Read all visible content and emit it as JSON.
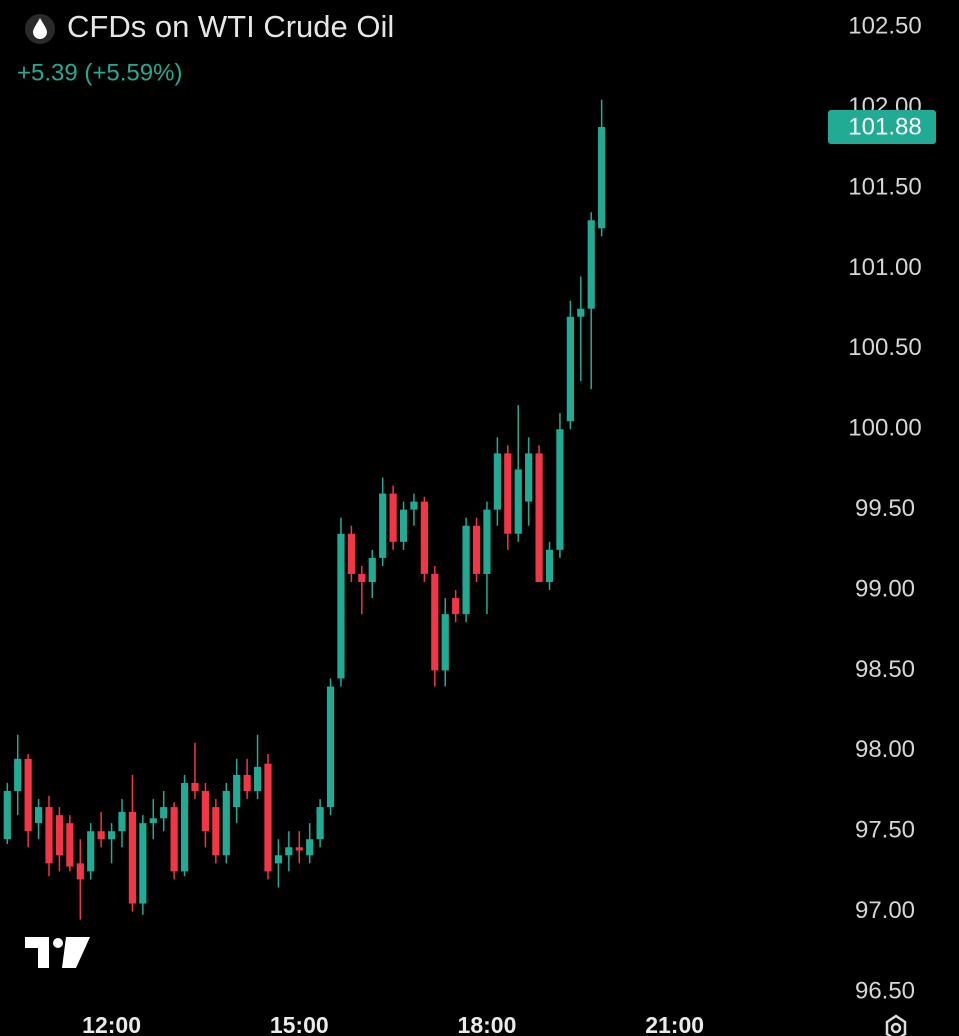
{
  "chart_data": {
    "type": "candlestick",
    "title": "CFDs on WTI Crude Oil",
    "change": "+5.39 (+5.59%)",
    "up_color": "#22ab94",
    "down_color": "#f23645",
    "x": [
      "10:20",
      "10:30",
      "10:40",
      "10:50",
      "11:00",
      "11:10",
      "11:20",
      "11:30",
      "11:40",
      "11:50",
      "12:00",
      "12:10",
      "12:20",
      "12:30",
      "12:40",
      "12:50",
      "13:00",
      "13:10",
      "13:20",
      "13:30",
      "13:40",
      "13:50",
      "14:00",
      "14:10",
      "14:20",
      "14:30",
      "14:40",
      "14:50",
      "15:00",
      "15:10",
      "15:20",
      "15:30",
      "15:40",
      "15:50",
      "16:00",
      "16:10",
      "16:20",
      "16:30",
      "16:40",
      "16:50",
      "17:00",
      "17:10",
      "17:20",
      "17:30",
      "17:40",
      "17:50",
      "18:00",
      "18:10",
      "18:20",
      "18:30",
      "18:40",
      "18:50",
      "19:00",
      "19:10",
      "19:20",
      "19:30",
      "19:40",
      "19:50"
    ],
    "open": [
      97.45,
      97.75,
      97.95,
      97.55,
      97.65,
      97.6,
      97.55,
      97.3,
      97.25,
      97.5,
      97.45,
      97.5,
      97.62,
      97.05,
      97.55,
      97.58,
      97.65,
      97.25,
      97.8,
      97.75,
      97.65,
      97.35,
      97.65,
      97.85,
      97.75,
      97.92,
      97.3,
      97.35,
      97.4,
      97.35,
      97.45,
      97.65,
      98.45,
      99.35,
      99.1,
      99.05,
      99.2,
      99.6,
      99.3,
      99.5,
      99.55,
      99.1,
      98.5,
      98.95,
      98.85,
      99.4,
      99.1,
      99.5,
      99.85,
      99.35,
      99.55,
      99.85,
      99.05,
      99.25,
      100.05,
      100.7,
      100.75,
      101.25
    ],
    "high": [
      97.8,
      98.1,
      97.98,
      97.7,
      97.72,
      97.65,
      97.6,
      97.45,
      97.55,
      97.62,
      97.55,
      97.7,
      97.85,
      97.6,
      97.7,
      97.75,
      97.68,
      97.85,
      98.05,
      97.8,
      97.7,
      97.8,
      97.95,
      97.95,
      98.1,
      97.98,
      97.45,
      97.5,
      97.5,
      97.55,
      97.7,
      98.45,
      99.45,
      99.4,
      99.15,
      99.25,
      99.7,
      99.65,
      99.55,
      99.6,
      99.58,
      99.15,
      98.95,
      99.0,
      99.45,
      99.45,
      99.55,
      99.95,
      99.9,
      100.15,
      99.95,
      99.9,
      99.3,
      100.1,
      100.8,
      100.95,
      101.35,
      102.05
    ],
    "low": [
      97.42,
      97.6,
      97.4,
      97.45,
      97.22,
      97.25,
      97.25,
      96.95,
      97.2,
      97.4,
      97.3,
      97.4,
      97.0,
      96.98,
      97.45,
      97.5,
      97.2,
      97.22,
      97.7,
      97.4,
      97.3,
      97.3,
      97.55,
      97.7,
      97.7,
      97.2,
      97.15,
      97.25,
      97.3,
      97.3,
      97.4,
      97.6,
      98.4,
      99.05,
      98.85,
      98.95,
      99.15,
      99.25,
      99.25,
      99.4,
      99.05,
      98.4,
      98.4,
      98.8,
      98.8,
      99.05,
      98.85,
      99.4,
      99.25,
      99.3,
      99.4,
      99.05,
      99.0,
      99.2,
      100.0,
      100.3,
      100.25,
      101.2
    ],
    "close": [
      97.75,
      97.95,
      97.5,
      97.65,
      97.3,
      97.35,
      97.28,
      97.2,
      97.5,
      97.45,
      97.5,
      97.62,
      97.05,
      97.55,
      97.58,
      97.65,
      97.25,
      97.8,
      97.75,
      97.5,
      97.35,
      97.75,
      97.85,
      97.75,
      97.9,
      97.25,
      97.35,
      97.4,
      97.38,
      97.45,
      97.65,
      98.4,
      99.35,
      99.1,
      99.05,
      99.2,
      99.6,
      99.3,
      99.5,
      99.55,
      99.1,
      98.5,
      98.85,
      98.85,
      99.4,
      99.1,
      99.5,
      99.85,
      99.35,
      99.75,
      99.85,
      99.05,
      99.25,
      100.0,
      100.7,
      100.75,
      101.3,
      101.88
    ],
    "last_price": 101.88,
    "xlim": [
      "10:13",
      "23:29"
    ],
    "xticks": [
      "12:00",
      "15:00",
      "18:00",
      "21:00"
    ],
    "ylim": [
      96.45,
      102.67
    ],
    "yticks": [
      {
        "value": 96.5,
        "label": "96.50"
      },
      {
        "value": 97,
        "label": "97.00"
      },
      {
        "value": 97.5,
        "label": "97.50"
      },
      {
        "value": 98,
        "label": "98.00"
      },
      {
        "value": 98.5,
        "label": "98.50"
      },
      {
        "value": 99,
        "label": "99.00"
      },
      {
        "value": 99.5,
        "label": "99.50"
      },
      {
        "value": 100,
        "label": "100.00"
      },
      {
        "value": 100.5,
        "label": "100.50"
      },
      {
        "value": 101,
        "label": "101.00"
      },
      {
        "value": 101.5,
        "label": "101.50"
      },
      {
        "value": 102,
        "label": "102.00"
      },
      {
        "value": 102.5,
        "label": "102.50"
      }
    ]
  }
}
